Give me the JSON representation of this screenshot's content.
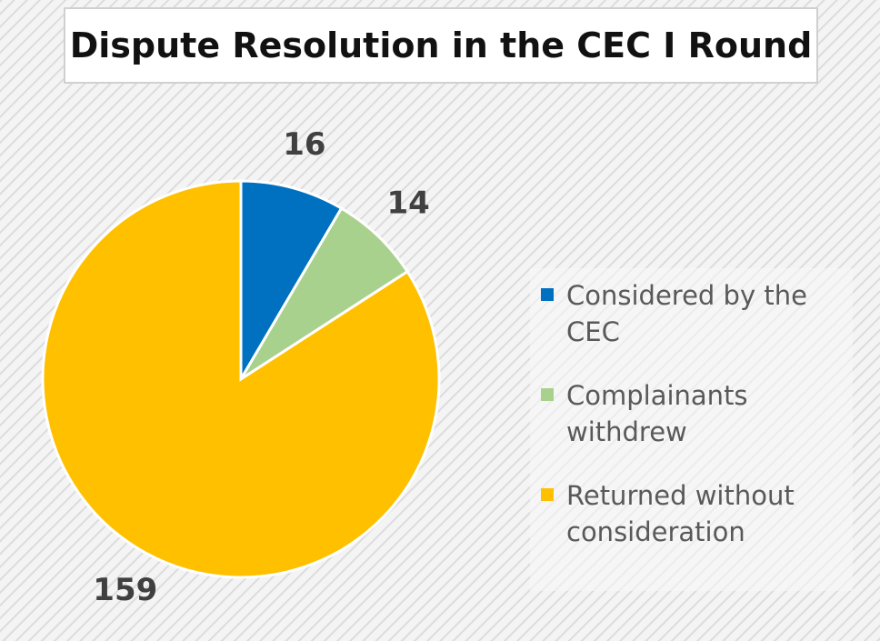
{
  "chart_data": {
    "type": "pie",
    "title": "Dispute Resolution in the CEC I Round",
    "categories": [
      "Considered by the CEC",
      "Complainants withdrew",
      "Returned without consideration"
    ],
    "values": [
      16,
      14,
      159
    ],
    "colors": [
      "#0070c0",
      "#a9d18e",
      "#ffc000"
    ],
    "legend": "right"
  }
}
